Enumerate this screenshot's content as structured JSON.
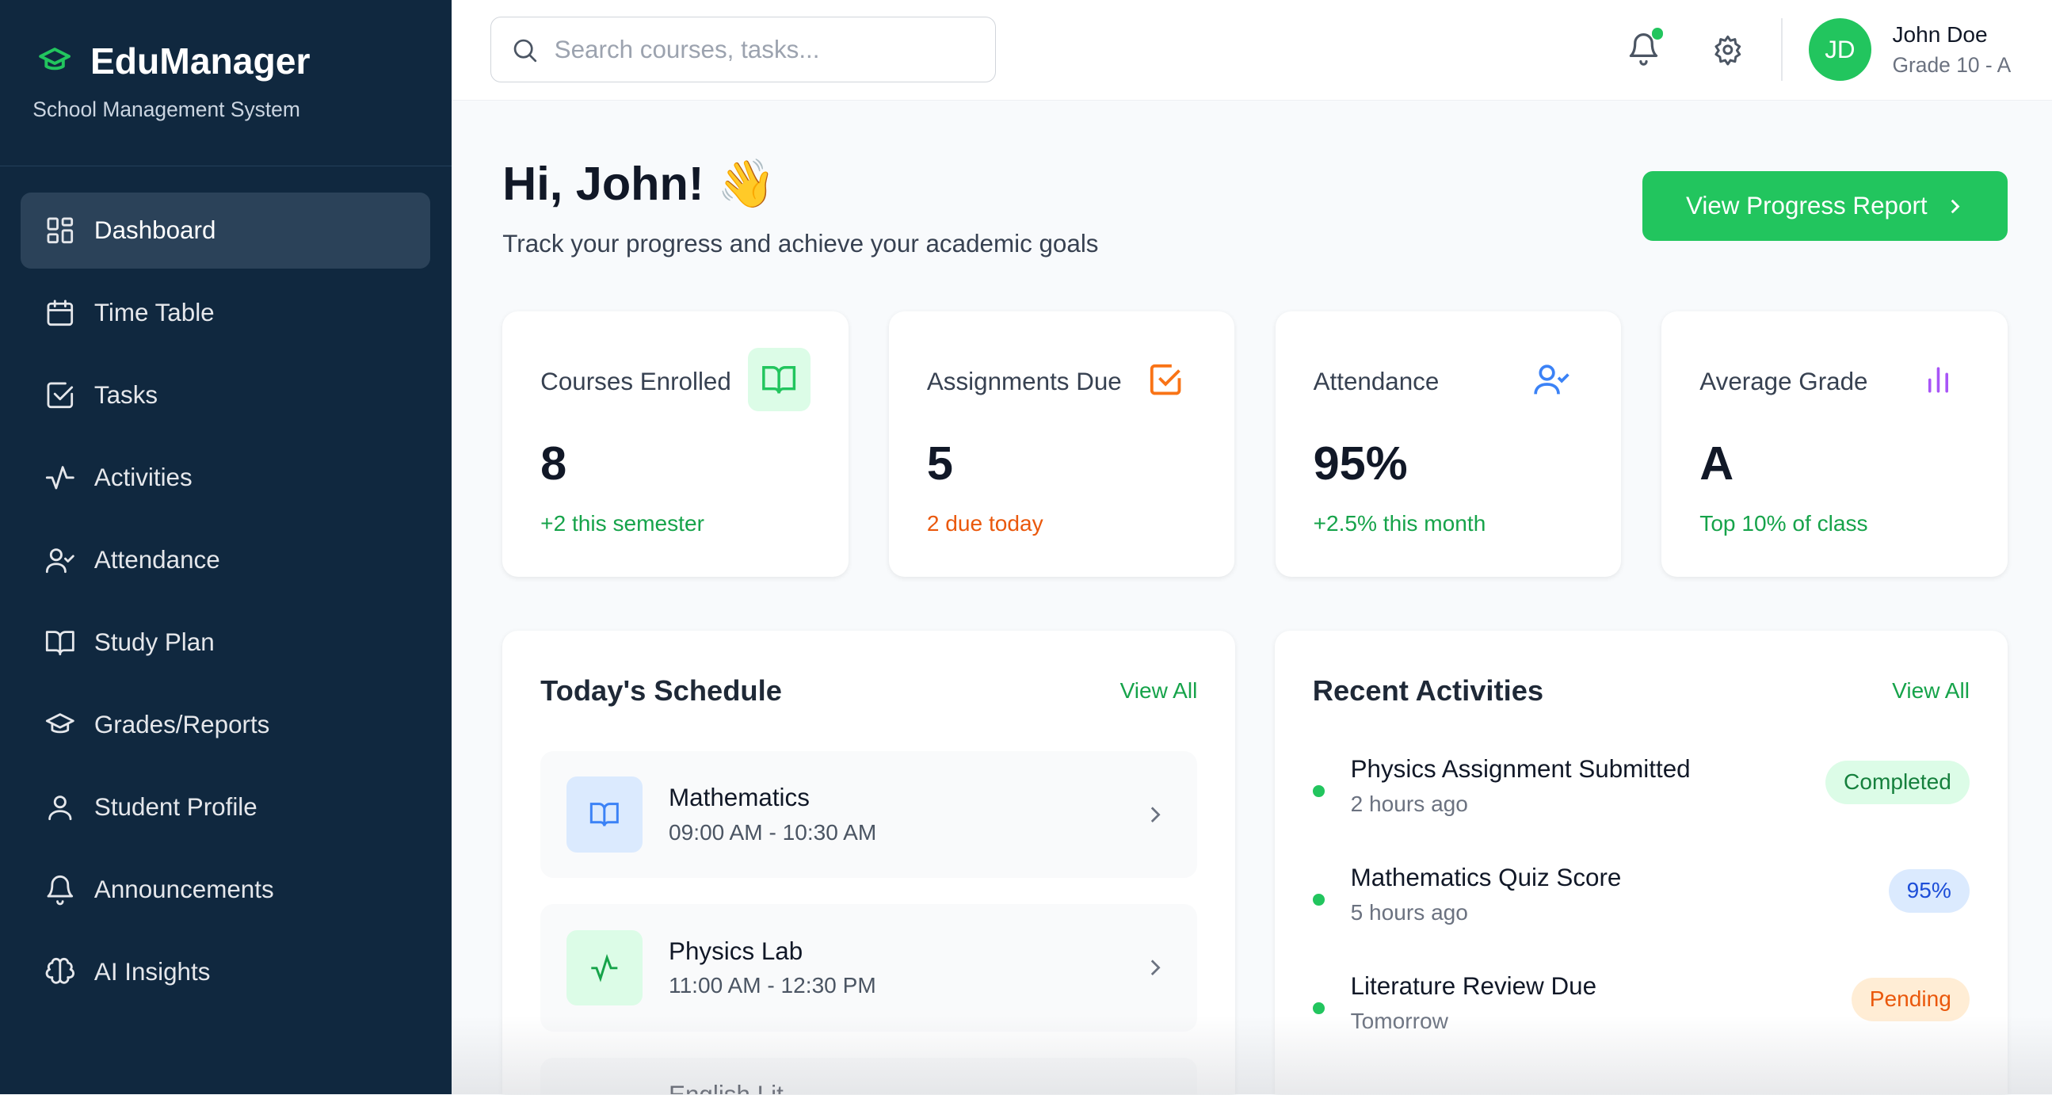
{
  "brand": {
    "name": "EduManager",
    "subtitle": "School Management System"
  },
  "sidebar": {
    "items": [
      {
        "label": "Dashboard",
        "icon": "grid-icon",
        "active": true
      },
      {
        "label": "Time Table",
        "icon": "calendar-icon"
      },
      {
        "label": "Tasks",
        "icon": "checkbox-icon"
      },
      {
        "label": "Activities",
        "icon": "activity-icon"
      },
      {
        "label": "Attendance",
        "icon": "user-check-icon"
      },
      {
        "label": "Study Plan",
        "icon": "book-icon"
      },
      {
        "label": "Grades/Reports",
        "icon": "graduation-cap-icon"
      },
      {
        "label": "Student Profile",
        "icon": "user-icon"
      },
      {
        "label": "Announcements",
        "icon": "bell-icon"
      },
      {
        "label": "AI Insights",
        "icon": "brain-icon"
      }
    ]
  },
  "topbar": {
    "search_placeholder": "Search courses, tasks...",
    "user": {
      "initials": "JD",
      "name": "John Doe",
      "grade": "Grade 10 - A"
    }
  },
  "header": {
    "greeting": "Hi, John! 👋",
    "subtitle": "Track your progress and achieve your academic goals",
    "report_button": "View Progress Report"
  },
  "stats": [
    {
      "label": "Courses Enrolled",
      "value": "8",
      "note": "+2 this semester",
      "color": "#16a34a"
    },
    {
      "label": "Assignments Due",
      "value": "5",
      "note": "2 due today",
      "color": "#ea580c"
    },
    {
      "label": "Attendance",
      "value": "95%",
      "note": "+2.5% this month",
      "color": "#16a34a"
    },
    {
      "label": "Average Grade",
      "value": "A",
      "note": "Top 10% of class",
      "color": "#16a34a"
    }
  ],
  "schedule": {
    "title": "Today's Schedule",
    "view_all": "View All",
    "items": [
      {
        "name": "Mathematics",
        "time": "09:00 AM - 10:30 AM"
      },
      {
        "name": "Physics Lab",
        "time": "11:00 AM - 12:30 PM"
      },
      {
        "name": "English Lit",
        "time": ""
      }
    ]
  },
  "activities": {
    "title": "Recent Activities",
    "view_all": "View All",
    "items": [
      {
        "title": "Physics Assignment Submitted",
        "time": "2 hours ago",
        "badge": "Completed"
      },
      {
        "title": "Mathematics Quiz Score",
        "time": "5 hours ago",
        "badge": "95%"
      },
      {
        "title": "Literature Review Due",
        "time": "Tomorrow",
        "badge": "Pending"
      }
    ]
  }
}
